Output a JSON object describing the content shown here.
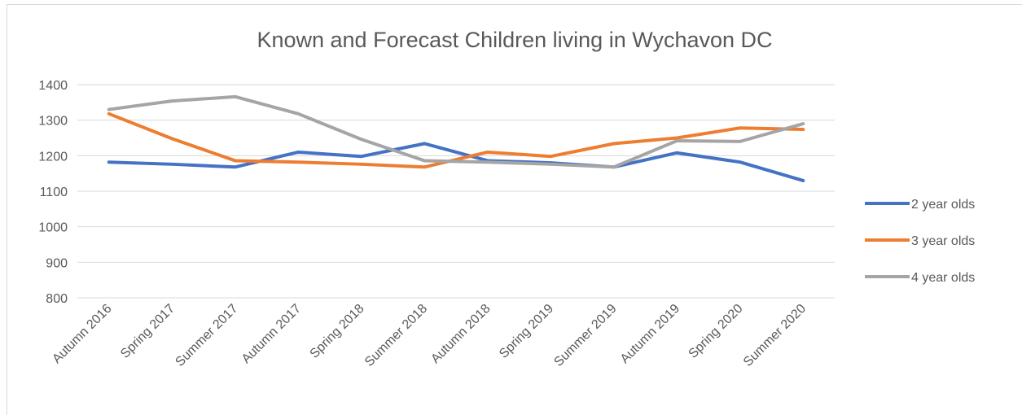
{
  "chart_data": {
    "type": "line",
    "title": "Known and Forecast Children living in Wychavon DC",
    "categories": [
      "Autumn 2016",
      "Spring 2017",
      "Summer 2017",
      "Autumn 2017",
      "Spring 2018",
      "Summer 2018",
      "Autumn 2018",
      "Spring 2019",
      "Summer 2019",
      "Autumn 2019",
      "Spring 2020",
      "Summer 2020"
    ],
    "series": [
      {
        "name": "2 year olds",
        "color": "#4472c4",
        "values": [
          1182,
          1176,
          1168,
          1210,
          1198,
          1234,
          1186,
          1180,
          1168,
          1208,
          1182,
          1130
        ]
      },
      {
        "name": "3 year olds",
        "color": "#ed7d31",
        "values": [
          1318,
          1248,
          1186,
          1182,
          1176,
          1168,
          1210,
          1198,
          1234,
          1250,
          1278,
          1274
        ]
      },
      {
        "name": "4 year olds",
        "color": "#a5a5a5",
        "values": [
          1330,
          1354,
          1366,
          1318,
          1246,
          1186,
          1182,
          1176,
          1168,
          1242,
          1240,
          1290
        ]
      }
    ],
    "ylim": [
      800,
      1400
    ],
    "yticks": [
      800,
      900,
      1000,
      1100,
      1200,
      1300,
      1400
    ],
    "grid": true,
    "legend": "right"
  }
}
